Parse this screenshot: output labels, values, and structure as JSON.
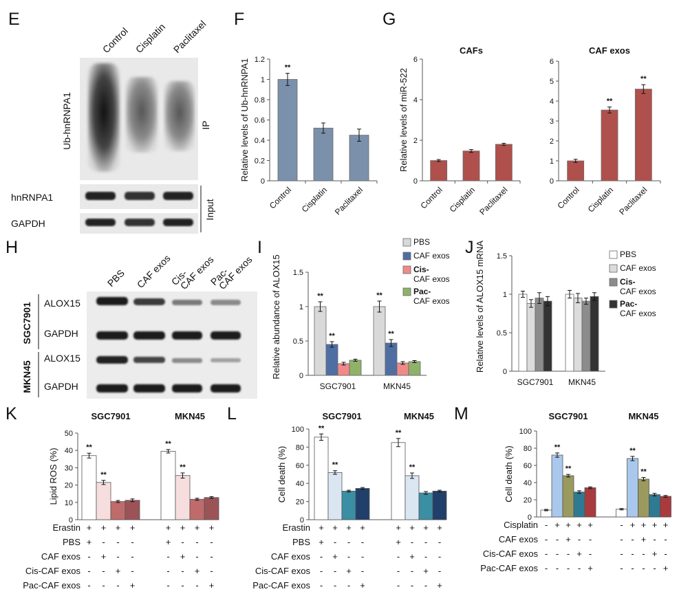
{
  "panels": {
    "E": {
      "letter": "E",
      "lanes": [
        "Control",
        "Cisplatin",
        "Paclitaxel"
      ],
      "blot_labels": [
        "Ub-hnRNPA1",
        "hnRNPA1",
        "GAPDH"
      ],
      "side_labels": [
        "IP",
        "Input"
      ]
    },
    "H": {
      "letter": "H",
      "lanes": [
        "PBS",
        "CAF exos",
        "Cis-",
        "CAF exos",
        "Pac-",
        "CAF exos"
      ],
      "cell_lines": [
        "SGC7901",
        "MKN45"
      ],
      "blot_labels": [
        "ALOX15",
        "GAPDH",
        "ALOX15",
        "GAPDH"
      ]
    },
    "F": {
      "letter": "F"
    },
    "G": {
      "letter": "G"
    },
    "I": {
      "letter": "I"
    },
    "J": {
      "letter": "J"
    },
    "K": {
      "letter": "K"
    },
    "L": {
      "letter": "L"
    },
    "M": {
      "letter": "M"
    }
  },
  "chart_data": [
    {
      "id": "F",
      "type": "bar",
      "categories": [
        "Control",
        "Cisplatin",
        "Paclitaxel"
      ],
      "values": [
        1.0,
        0.52,
        0.45
      ],
      "errors": [
        0.06,
        0.05,
        0.06
      ],
      "significance": [
        "**",
        "",
        ""
      ],
      "ylabel": "Relative levels of Ub-hnRNPA1",
      "ylim": [
        0,
        1.2
      ],
      "yticks": [
        "0",
        "0.2",
        "0.4",
        "0.6",
        "0.8",
        "1",
        "1.2"
      ],
      "color": "#7b90ab"
    },
    {
      "id": "G1",
      "type": "bar",
      "title": "CAFs",
      "categories": [
        "Control",
        "Cisplatin",
        "Paclitaxel"
      ],
      "values": [
        1.0,
        1.47,
        1.8
      ],
      "errors": [
        0.05,
        0.07,
        0.05
      ],
      "significance": [
        "",
        "",
        ""
      ],
      "ylabel": "Relative levels of miR-522",
      "ylim": [
        0,
        6
      ],
      "yticks": [
        "0",
        "2",
        "4",
        "6"
      ],
      "color": "#b0504c"
    },
    {
      "id": "G2",
      "type": "bar",
      "title": "CAF exos",
      "categories": [
        "Control",
        "Cisplatin",
        "Paclitaxel"
      ],
      "values": [
        1.0,
        3.55,
        4.6
      ],
      "errors": [
        0.08,
        0.15,
        0.22
      ],
      "significance": [
        "",
        "**",
        "**"
      ],
      "ylim": [
        0,
        6
      ],
      "yticks": [
        "0",
        "1",
        "2",
        "3",
        "4",
        "5",
        "6"
      ],
      "color": "#b0504c"
    },
    {
      "id": "I",
      "type": "bar",
      "categories": [
        "SGC7901",
        "MKN45"
      ],
      "series": [
        {
          "name": "PBS",
          "values": [
            1.0,
            1.0
          ],
          "errors": [
            0.07,
            0.08
          ],
          "significance": [
            "**",
            "**"
          ],
          "color": "#d9d9d9"
        },
        {
          "name": "CAF exos",
          "values": [
            0.45,
            0.47
          ],
          "errors": [
            0.04,
            0.05
          ],
          "significance": [
            "**",
            "**"
          ],
          "color": "#4f6fa3"
        },
        {
          "name": "Cis- CAF exos",
          "values": [
            0.17,
            0.18
          ],
          "errors": [
            0.02,
            0.02
          ],
          "significance": [
            "",
            ""
          ],
          "color": "#f08a8a"
        },
        {
          "name": "Pac- CAF exos",
          "values": [
            0.22,
            0.2
          ],
          "errors": [
            0.015,
            0.015
          ],
          "significance": [
            "",
            ""
          ],
          "color": "#8fb26a"
        }
      ],
      "ylabel": "Relative abundance of ALOX15",
      "ylim": [
        0,
        1.5
      ],
      "yticks": [
        "0",
        "0.5",
        "1",
        "1.5"
      ],
      "legend": [
        "PBS",
        "CAF exos",
        "Cis-\nCAF exos",
        "Pac-\nCAF exos"
      ]
    },
    {
      "id": "J",
      "type": "bar",
      "categories": [
        "SGC7901",
        "MKN45"
      ],
      "series": [
        {
          "name": "PBS",
          "values": [
            1.0,
            1.0
          ],
          "errors": [
            0.04,
            0.05
          ],
          "color": "#ffffff"
        },
        {
          "name": "CAF exos",
          "values": [
            0.88,
            0.95
          ],
          "errors": [
            0.05,
            0.06
          ],
          "color": "#dcdcdc"
        },
        {
          "name": "Cis- CAF exos",
          "values": [
            0.95,
            0.91
          ],
          "errors": [
            0.07,
            0.04
          ],
          "color": "#8c8c8c"
        },
        {
          "name": "Pac- CAF exos",
          "values": [
            0.91,
            0.97
          ],
          "errors": [
            0.06,
            0.05
          ],
          "color": "#333333"
        }
      ],
      "ylabel": "Relative levels of ALOX15 mRNA",
      "ylim": [
        0,
        1.5
      ],
      "yticks": [
        "0",
        "0.5",
        "1",
        "1.5"
      ],
      "legend": [
        "PBS",
        "CAF exos",
        "Cis-\nCAF exos",
        "Pac-\nCAF exos"
      ]
    },
    {
      "id": "K",
      "type": "bar",
      "groups": [
        "SGC7901",
        "MKN45"
      ],
      "values": [
        [
          37,
          21.5,
          10.5,
          11.2
        ],
        [
          39.5,
          25.5,
          11.8,
          12.8
        ]
      ],
      "errors": [
        [
          1.4,
          1.2,
          0.6,
          0.8
        ],
        [
          1.0,
          1.5,
          0.6,
          0.5
        ]
      ],
      "significance": [
        [
          "**",
          "**",
          "",
          ""
        ],
        [
          "**",
          "**",
          "",
          ""
        ]
      ],
      "colors": [
        "#ffffff",
        "#f6dede",
        "#c06b6b",
        "#9c5358"
      ],
      "ylabel": "Lipid ROS (%)",
      "ylim": [
        0,
        50
      ],
      "yticks": [
        "0",
        "10",
        "20",
        "30",
        "40",
        "50"
      ],
      "conditions": [
        {
          "label": "Erastin",
          "signs": [
            "+",
            "+",
            "+",
            "+",
            "+",
            "+",
            "+",
            "+"
          ]
        },
        {
          "label": "PBS",
          "signs": [
            "+",
            "-",
            "-",
            "-",
            "+",
            "-",
            "-",
            "-"
          ]
        },
        {
          "label": "CAF exos",
          "signs": [
            "-",
            "+",
            "-",
            "-",
            "-",
            "+",
            "-",
            "-"
          ]
        },
        {
          "label": "Cis-CAF exos",
          "signs": [
            "-",
            "-",
            "+",
            "-",
            "-",
            "-",
            "+",
            "-"
          ]
        },
        {
          "label": "Pac-CAF exos",
          "signs": [
            "-",
            "-",
            "-",
            "+",
            "-",
            "-",
            "-",
            "+"
          ]
        }
      ]
    },
    {
      "id": "L",
      "type": "bar",
      "groups": [
        "SGC7901",
        "MKN45"
      ],
      "values": [
        [
          91,
          52,
          31.5,
          34.5
        ],
        [
          85,
          48.5,
          29.5,
          31.5
        ]
      ],
      "errors": [
        [
          3.5,
          2.0,
          1.0,
          1.0
        ],
        [
          4.5,
          3.0,
          1.5,
          1.0
        ]
      ],
      "significance": [
        [
          "**",
          "**",
          "",
          ""
        ],
        [
          "**",
          "**",
          "",
          ""
        ]
      ],
      "colors": [
        "#ffffff",
        "#dbe6f3",
        "#3b8fa4",
        "#213f6b"
      ],
      "ylabel": "Cell death (%)",
      "ylim": [
        0,
        100
      ],
      "yticks": [
        "0",
        "20",
        "40",
        "60",
        "80",
        "100"
      ],
      "conditions": [
        {
          "label": "Erastin",
          "signs": [
            "+",
            "+",
            "+",
            "+",
            "+",
            "+",
            "+",
            "+"
          ]
        },
        {
          "label": "PBS",
          "signs": [
            "+",
            "-",
            "-",
            "-",
            "+",
            "-",
            "-",
            "-"
          ]
        },
        {
          "label": "CAF exos",
          "signs": [
            "-",
            "+",
            "-",
            "-",
            "-",
            "+",
            "-",
            "-"
          ]
        },
        {
          "label": "Cis-CAF exos",
          "signs": [
            "-",
            "-",
            "+",
            "-",
            "-",
            "-",
            "+",
            "-"
          ]
        },
        {
          "label": "Pac-CAF exos",
          "signs": [
            "-",
            "-",
            "-",
            "+",
            "-",
            "-",
            "-",
            "+"
          ]
        }
      ]
    },
    {
      "id": "M",
      "type": "bar",
      "groups": [
        "SGC7901",
        "MKN45"
      ],
      "values": [
        [
          8,
          72,
          48,
          29,
          34
        ],
        [
          9,
          68,
          44,
          26,
          24
        ]
      ],
      "errors": [
        [
          0.8,
          2.5,
          1.5,
          1.5,
          1.0
        ],
        [
          0.8,
          2.5,
          2.0,
          1.5,
          1.0
        ]
      ],
      "significance": [
        [
          "",
          "**",
          "**",
          "",
          ""
        ],
        [
          "",
          "**",
          "**",
          "",
          ""
        ]
      ],
      "colors": [
        "#ffffff",
        "#a9c8ec",
        "#9b9a5e",
        "#2e7a93",
        "#a93a3e"
      ],
      "ylabel": "Cell death (%)",
      "ylim": [
        0,
        100
      ],
      "yticks": [
        "0",
        "20",
        "40",
        "60",
        "80",
        "100"
      ],
      "conditions": [
        {
          "label": "Cisplatin",
          "signs": [
            "-",
            "+",
            "+",
            "+",
            "+",
            "-",
            "+",
            "+",
            "+",
            "+"
          ]
        },
        {
          "label": "CAF exos",
          "signs": [
            "-",
            "-",
            "+",
            "-",
            "-",
            "-",
            "-",
            "+",
            "-",
            "-"
          ]
        },
        {
          "label": "Cis-CAF exos",
          "signs": [
            "-",
            "-",
            "-",
            "+",
            "-",
            "-",
            "-",
            "-",
            "+",
            "-"
          ]
        },
        {
          "label": "Pac-CAF exos",
          "signs": [
            "-",
            "-",
            "-",
            "-",
            "+",
            "-",
            "-",
            "-",
            "-",
            "+"
          ]
        }
      ]
    }
  ]
}
